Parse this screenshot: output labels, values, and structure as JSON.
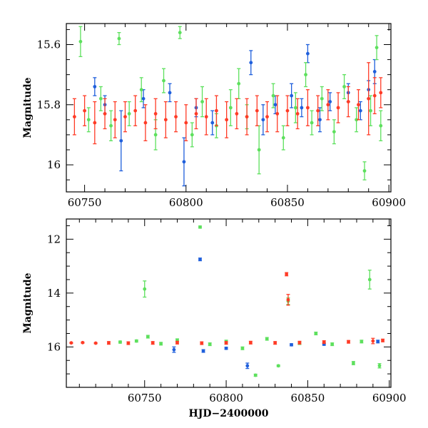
{
  "colors": {
    "blue": "#1f5fdc",
    "green": "#5de05d",
    "red": "#ff3b26",
    "axis": "#000000"
  },
  "chart_data": [
    {
      "type": "scatter",
      "title": "",
      "xlabel": "",
      "ylabel": "Magnitude",
      "xlim": [
        60741,
        60901
      ],
      "ylim": [
        16.09,
        15.53
      ],
      "y_inverted": true,
      "xticks": [
        60750,
        60800,
        60850,
        60900
      ],
      "yticks": [
        15.6,
        15.8,
        16
      ],
      "series": [
        {
          "color": "blue",
          "points": [
            [
              60755,
              15.74,
              0.03
            ],
            [
              60760,
              15.8,
              0.03
            ],
            [
              60768,
              15.92,
              0.1
            ],
            [
              60779,
              15.78,
              0.03
            ],
            [
              60792,
              15.76,
              0.03
            ],
            [
              60799,
              15.99,
              0.08
            ],
            [
              60805,
              15.81,
              0.03
            ],
            [
              60813,
              15.86,
              0.04
            ],
            [
              60832,
              15.66,
              0.04
            ],
            [
              60838,
              15.85,
              0.05
            ],
            [
              60844,
              15.8,
              0.03
            ],
            [
              60852,
              15.77,
              0.04
            ],
            [
              60857,
              15.81,
              0.03
            ],
            [
              60860,
              15.63,
              0.03
            ],
            [
              60866,
              15.85,
              0.04
            ],
            [
              60871,
              15.79,
              0.03
            ],
            [
              60880,
              15.76,
              0.03
            ],
            [
              60886,
              15.82,
              0.03
            ],
            [
              60890,
              15.75,
              0.03
            ],
            [
              60893,
              15.69,
              0.04
            ]
          ]
        },
        {
          "color": "green",
          "points": [
            [
              60748,
              15.59,
              0.05
            ],
            [
              60752,
              15.85,
              0.04
            ],
            [
              60758,
              15.78,
              0.04
            ],
            [
              60763,
              15.87,
              0.05
            ],
            [
              60767,
              15.58,
              0.02
            ],
            [
              60772,
              15.83,
              0.04
            ],
            [
              60778,
              15.75,
              0.04
            ],
            [
              60785,
              15.9,
              0.05
            ],
            [
              60789,
              15.72,
              0.04
            ],
            [
              60797,
              15.56,
              0.02
            ],
            [
              60803,
              15.9,
              0.04
            ],
            [
              60808,
              15.79,
              0.05
            ],
            [
              60815,
              15.87,
              0.04
            ],
            [
              60822,
              15.81,
              0.06
            ],
            [
              60826,
              15.73,
              0.05
            ],
            [
              60830,
              15.84,
              0.04
            ],
            [
              60836,
              15.95,
              0.08
            ],
            [
              60843,
              15.77,
              0.04
            ],
            [
              60848,
              15.91,
              0.04
            ],
            [
              60854,
              15.81,
              0.05
            ],
            [
              60859,
              15.7,
              0.04
            ],
            [
              60862,
              15.86,
              0.04
            ],
            [
              60867,
              15.78,
              0.04
            ],
            [
              60873,
              15.89,
              0.04
            ],
            [
              60878,
              15.74,
              0.04
            ],
            [
              60884,
              15.85,
              0.04
            ],
            [
              60888,
              16.02,
              0.03
            ],
            [
              60891,
              15.82,
              0.05
            ],
            [
              60894,
              15.61,
              0.04
            ],
            [
              60896,
              15.87,
              0.05
            ]
          ]
        },
        {
          "color": "red",
          "points": [
            [
              60745,
              15.84,
              0.06
            ],
            [
              60750,
              15.82,
              0.05
            ],
            [
              60755,
              15.86,
              0.07
            ],
            [
              60760,
              15.83,
              0.05
            ],
            [
              60765,
              15.85,
              0.06
            ],
            [
              60770,
              15.84,
              0.05
            ],
            [
              60775,
              15.82,
              0.05
            ],
            [
              60780,
              15.86,
              0.06
            ],
            [
              60785,
              15.83,
              0.05
            ],
            [
              60790,
              15.85,
              0.06
            ],
            [
              60795,
              15.84,
              0.05
            ],
            [
              60800,
              15.86,
              0.06
            ],
            [
              60805,
              15.83,
              0.05
            ],
            [
              60810,
              15.84,
              0.06
            ],
            [
              60815,
              15.82,
              0.05
            ],
            [
              60820,
              15.85,
              0.06
            ],
            [
              60825,
              15.83,
              0.05
            ],
            [
              60830,
              15.84,
              0.06
            ],
            [
              60835,
              15.82,
              0.05
            ],
            [
              60840,
              15.84,
              0.05
            ],
            [
              60845,
              15.83,
              0.06
            ],
            [
              60850,
              15.82,
              0.05
            ],
            [
              60855,
              15.83,
              0.05
            ],
            [
              60860,
              15.81,
              0.06
            ],
            [
              60865,
              15.82,
              0.05
            ],
            [
              60870,
              15.8,
              0.05
            ],
            [
              60875,
              15.81,
              0.05
            ],
            [
              60880,
              15.79,
              0.05
            ],
            [
              60885,
              15.8,
              0.05
            ],
            [
              60890,
              15.78,
              0.12
            ],
            [
              60893,
              15.77,
              0.06
            ],
            [
              60896,
              15.76,
              0.05
            ]
          ]
        }
      ]
    },
    {
      "type": "scatter",
      "title": "",
      "xlabel": "HJD−2400000",
      "ylabel": "Magnitude",
      "xlim": [
        60702,
        60901
      ],
      "ylim": [
        17.5,
        11.25
      ],
      "y_inverted": true,
      "xticks": [
        60750,
        60800,
        60850,
        60900
      ],
      "yticks": [
        12,
        14,
        16
      ],
      "series": [
        {
          "color": "blue",
          "points": [
            [
              60768,
              16.1,
              0.1
            ],
            [
              60784,
              12.75,
              0.05
            ],
            [
              60786,
              16.15,
              0.05
            ],
            [
              60800,
              16.05,
              0.04
            ],
            [
              60813,
              16.7,
              0.1
            ],
            [
              60840,
              15.92,
              0.04
            ],
            [
              60860,
              15.9,
              0.04
            ],
            [
              60893,
              15.8,
              0.05
            ]
          ]
        },
        {
          "color": "green",
          "points": [
            [
              60735,
              15.82,
              0.04
            ],
            [
              60745,
              15.78,
              0.04
            ],
            [
              60750,
              13.85,
              0.3
            ],
            [
              60752,
              15.62,
              0.05
            ],
            [
              60760,
              15.88,
              0.05
            ],
            [
              60770,
              15.75,
              0.05
            ],
            [
              60784,
              11.55,
              0.04
            ],
            [
              60790,
              15.9,
              0.05
            ],
            [
              60800,
              15.8,
              0.05
            ],
            [
              60810,
              16.05,
              0.05
            ],
            [
              60818,
              17.05,
              0.04
            ],
            [
              60825,
              15.7,
              0.05
            ],
            [
              60832,
              16.7,
              0.03
            ],
            [
              60838,
              14.3,
              0.12
            ],
            [
              60845,
              15.86,
              0.05
            ],
            [
              60855,
              15.5,
              0.05
            ],
            [
              60865,
              15.9,
              0.05
            ],
            [
              60878,
              16.6,
              0.06
            ],
            [
              60883,
              15.8,
              0.05
            ],
            [
              60888,
              13.5,
              0.35
            ],
            [
              60894,
              16.7,
              0.08
            ]
          ]
        },
        {
          "color": "red",
          "points": [
            [
              60705,
              15.85,
              0.02
            ],
            [
              60712,
              15.84,
              0.02
            ],
            [
              60720,
              15.86,
              0.02
            ],
            [
              60728,
              15.85,
              0.05
            ],
            [
              60740,
              15.86,
              0.05
            ],
            [
              60755,
              15.85,
              0.05
            ],
            [
              60770,
              15.84,
              0.05
            ],
            [
              60785,
              15.86,
              0.05
            ],
            [
              60800,
              15.85,
              0.05
            ],
            [
              60815,
              15.84,
              0.05
            ],
            [
              60830,
              15.85,
              0.05
            ],
            [
              60837,
              13.3,
              0.06
            ],
            [
              60838,
              14.25,
              0.2
            ],
            [
              60845,
              15.84,
              0.05
            ],
            [
              60860,
              15.82,
              0.05
            ],
            [
              60875,
              15.81,
              0.05
            ],
            [
              60890,
              15.78,
              0.1
            ],
            [
              60896,
              15.76,
              0.05
            ]
          ]
        }
      ]
    }
  ]
}
